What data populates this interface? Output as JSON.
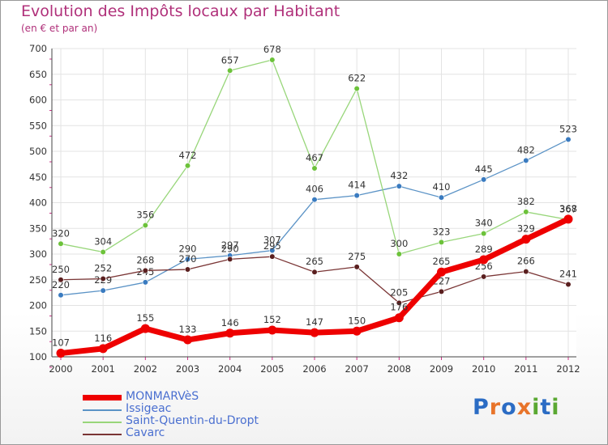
{
  "title": "Evolution des Impôts locaux par Habitant",
  "subtitle": "(en € et par an)",
  "logo": {
    "letters": [
      "P",
      "r",
      "o",
      "x",
      "i",
      "t",
      "i"
    ],
    "colors": [
      "#2b6cc4",
      "#e8742a",
      "#2b6cc4",
      "#e8742a",
      "#5aa832",
      "#2b6cc4",
      "#5aa832"
    ]
  },
  "chart_data": {
    "type": "line",
    "title": "Evolution des Impôts locaux par Habitant",
    "subtitle": "(en € et par an)",
    "x": [
      "2000",
      "2001",
      "2002",
      "2003",
      "2004",
      "2005",
      "2006",
      "2007",
      "2008",
      "2009",
      "2010",
      "2011",
      "2012"
    ],
    "ylim": [
      100,
      700
    ],
    "yticks": [
      "100",
      "150",
      "200",
      "250",
      "300",
      "350",
      "400",
      "450",
      "500",
      "550",
      "600",
      "650",
      "700"
    ],
    "grid": true,
    "legend_position": "bottom-left",
    "series": [
      {
        "name": "MONMARVèS",
        "color": "#ee0000",
        "marker_color": "#ee0000",
        "bold": true,
        "values": [
          107,
          116,
          155,
          133,
          146,
          152,
          147,
          150,
          176,
          265,
          289,
          329,
          368
        ],
        "labels": [
          "107",
          "116",
          "155",
          "133",
          "146",
          "152",
          "147",
          "150",
          "176",
          "265",
          "289",
          "329",
          "368"
        ]
      },
      {
        "name": "Issigeac",
        "color": "#5b93c6",
        "marker_color": "#3a7bc0",
        "bold": false,
        "values": [
          220,
          229,
          245,
          290,
          297,
          307,
          406,
          414,
          432,
          410,
          445,
          482,
          523
        ],
        "labels": [
          "220",
          "229",
          "245",
          "290",
          "297",
          "307",
          "406",
          "414",
          "432",
          "410",
          "445",
          "482",
          "523"
        ]
      },
      {
        "name": "Saint-Quentin-du-Dropt",
        "color": "#98d67a",
        "marker_color": "#6cc23a",
        "bold": false,
        "values": [
          320,
          304,
          356,
          472,
          657,
          678,
          467,
          622,
          300,
          323,
          340,
          382,
          367
        ],
        "labels": [
          "320",
          "304",
          "356",
          "472",
          "657",
          "678",
          "467",
          "622",
          "300",
          "323",
          "340",
          "382",
          "367"
        ]
      },
      {
        "name": "Cavarc",
        "color": "#7a3535",
        "marker_color": "#5a1f1f",
        "bold": false,
        "values": [
          250,
          252,
          268,
          270,
          290,
          295,
          265,
          275,
          205,
          227,
          256,
          266,
          241
        ],
        "labels": [
          "250",
          "252",
          "268",
          "270",
          "290",
          "295",
          "265",
          "275",
          "205",
          "227",
          "256",
          "266",
          "241"
        ]
      }
    ]
  }
}
